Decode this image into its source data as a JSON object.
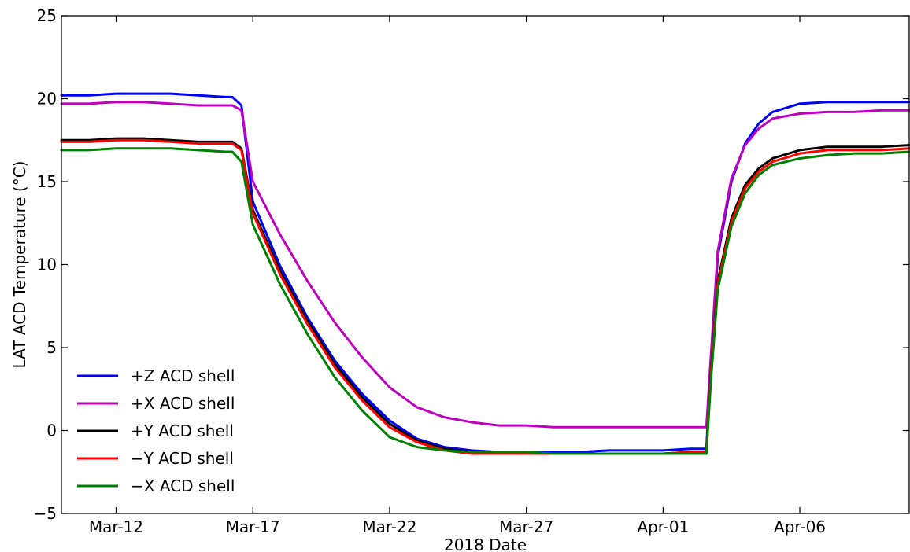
{
  "chart_data": {
    "type": "line",
    "xlabel": "2018 Date",
    "ylabel": "LAT ACD Temperature (°C)",
    "xlim": [
      "2018-03-10",
      "2018-04-10"
    ],
    "ylim": [
      -5,
      25
    ],
    "yticks": [
      -5,
      0,
      5,
      10,
      15,
      20,
      25
    ],
    "xticks": [
      {
        "date": "2018-03-12",
        "label": "Mar-12"
      },
      {
        "date": "2018-03-17",
        "label": "Mar-17"
      },
      {
        "date": "2018-03-22",
        "label": "Mar-22"
      },
      {
        "date": "2018-03-27",
        "label": "Mar-27"
      },
      {
        "date": "2018-04-01",
        "label": "Apr-01"
      },
      {
        "date": "2018-04-06",
        "label": "Apr-06"
      }
    ],
    "grid": false,
    "legend_position": "lower-left",
    "series": [
      {
        "name": "+Z ACD shell",
        "color": "#0000ff",
        "x": [
          "2018-03-10",
          "2018-03-11",
          "2018-03-12",
          "2018-03-13",
          "2018-03-14",
          "2018-03-15",
          "2018-03-16",
          "2018-03-16 06:00",
          "2018-03-16 14:00",
          "2018-03-17",
          "2018-03-18",
          "2018-03-19",
          "2018-03-20",
          "2018-03-21",
          "2018-03-22",
          "2018-03-23",
          "2018-03-24",
          "2018-03-25",
          "2018-03-26",
          "2018-03-27",
          "2018-03-28",
          "2018-03-29",
          "2018-03-30",
          "2018-03-31",
          "2018-04-01",
          "2018-04-02",
          "2018-04-02 14:00",
          "2018-04-02 18:00",
          "2018-04-03",
          "2018-04-03 12:00",
          "2018-04-04",
          "2018-04-04 12:00",
          "2018-04-05",
          "2018-04-06",
          "2018-04-07",
          "2018-04-08",
          "2018-04-09",
          "2018-04-10"
        ],
        "y": [
          20.2,
          20.2,
          20.3,
          20.3,
          20.3,
          20.2,
          20.1,
          20.1,
          19.6,
          13.8,
          9.9,
          6.8,
          4.2,
          2.2,
          0.6,
          -0.5,
          -1.0,
          -1.2,
          -1.3,
          -1.3,
          -1.3,
          -1.3,
          -1.2,
          -1.2,
          -1.2,
          -1.1,
          -1.1,
          4.0,
          10.5,
          15.0,
          17.3,
          18.5,
          19.2,
          19.7,
          19.8,
          19.8,
          19.8,
          19.8
        ]
      },
      {
        "name": "+X ACD shell",
        "color": "#c000c0",
        "x": [
          "2018-03-10",
          "2018-03-11",
          "2018-03-12",
          "2018-03-13",
          "2018-03-14",
          "2018-03-15",
          "2018-03-16",
          "2018-03-16 06:00",
          "2018-03-16 14:00",
          "2018-03-17",
          "2018-03-18",
          "2018-03-19",
          "2018-03-20",
          "2018-03-21",
          "2018-03-22",
          "2018-03-23",
          "2018-03-24",
          "2018-03-25",
          "2018-03-26",
          "2018-03-27",
          "2018-03-28",
          "2018-03-29",
          "2018-03-30",
          "2018-03-31",
          "2018-04-01",
          "2018-04-02",
          "2018-04-02 14:00",
          "2018-04-02 18:00",
          "2018-04-03",
          "2018-04-03 12:00",
          "2018-04-04",
          "2018-04-04 12:00",
          "2018-04-05",
          "2018-04-06",
          "2018-04-07",
          "2018-04-08",
          "2018-04-09",
          "2018-04-10"
        ],
        "y": [
          19.7,
          19.7,
          19.8,
          19.8,
          19.7,
          19.6,
          19.6,
          19.6,
          19.3,
          15.0,
          11.8,
          9.0,
          6.5,
          4.4,
          2.6,
          1.4,
          0.8,
          0.5,
          0.3,
          0.3,
          0.2,
          0.2,
          0.2,
          0.2,
          0.2,
          0.2,
          0.2,
          4.5,
          10.8,
          15.2,
          17.2,
          18.2,
          18.8,
          19.1,
          19.2,
          19.2,
          19.3,
          19.3
        ]
      },
      {
        "name": "+Y ACD shell",
        "color": "#000000",
        "x": [
          "2018-03-10",
          "2018-03-11",
          "2018-03-12",
          "2018-03-13",
          "2018-03-14",
          "2018-03-15",
          "2018-03-16",
          "2018-03-16 06:00",
          "2018-03-16 14:00",
          "2018-03-17",
          "2018-03-18",
          "2018-03-19",
          "2018-03-20",
          "2018-03-21",
          "2018-03-22",
          "2018-03-23",
          "2018-03-24",
          "2018-03-25",
          "2018-03-26",
          "2018-03-27",
          "2018-03-28",
          "2018-03-29",
          "2018-03-30",
          "2018-03-31",
          "2018-04-01",
          "2018-04-02",
          "2018-04-02 14:00",
          "2018-04-02 18:00",
          "2018-04-03",
          "2018-04-03 12:00",
          "2018-04-04",
          "2018-04-04 12:00",
          "2018-04-05",
          "2018-04-06",
          "2018-04-07",
          "2018-04-08",
          "2018-04-09",
          "2018-04-10"
        ],
        "y": [
          17.5,
          17.5,
          17.6,
          17.6,
          17.5,
          17.4,
          17.4,
          17.4,
          17.0,
          13.3,
          9.6,
          6.6,
          4.0,
          2.0,
          0.4,
          -0.6,
          -1.1,
          -1.3,
          -1.4,
          -1.4,
          -1.4,
          -1.4,
          -1.4,
          -1.4,
          -1.4,
          -1.3,
          -1.3,
          3.5,
          9.0,
          12.8,
          14.8,
          15.8,
          16.4,
          16.9,
          17.1,
          17.1,
          17.1,
          17.2
        ]
      },
      {
        "name": "−Y ACD shell",
        "color": "#ff0000",
        "x": [
          "2018-03-10",
          "2018-03-11",
          "2018-03-12",
          "2018-03-13",
          "2018-03-14",
          "2018-03-15",
          "2018-03-16",
          "2018-03-16 06:00",
          "2018-03-16 14:00",
          "2018-03-17",
          "2018-03-18",
          "2018-03-19",
          "2018-03-20",
          "2018-03-21",
          "2018-03-22",
          "2018-03-23",
          "2018-03-24",
          "2018-03-25",
          "2018-03-26",
          "2018-03-27",
          "2018-03-28",
          "2018-03-29",
          "2018-03-30",
          "2018-03-31",
          "2018-04-01",
          "2018-04-02",
          "2018-04-02 14:00",
          "2018-04-02 18:00",
          "2018-04-03",
          "2018-04-03 12:00",
          "2018-04-04",
          "2018-04-04 12:00",
          "2018-04-05",
          "2018-04-06",
          "2018-04-07",
          "2018-04-08",
          "2018-04-09",
          "2018-04-10"
        ],
        "y": [
          17.4,
          17.4,
          17.5,
          17.5,
          17.4,
          17.3,
          17.3,
          17.3,
          16.9,
          13.1,
          9.4,
          6.4,
          3.8,
          1.8,
          0.2,
          -0.7,
          -1.2,
          -1.4,
          -1.4,
          -1.4,
          -1.4,
          -1.4,
          -1.4,
          -1.4,
          -1.4,
          -1.3,
          -1.3,
          3.3,
          8.8,
          12.6,
          14.6,
          15.6,
          16.2,
          16.7,
          16.9,
          16.9,
          16.9,
          17.0
        ]
      },
      {
        "name": "−X ACD shell",
        "color": "#008000",
        "x": [
          "2018-03-10",
          "2018-03-11",
          "2018-03-12",
          "2018-03-13",
          "2018-03-14",
          "2018-03-15",
          "2018-03-16",
          "2018-03-16 06:00",
          "2018-03-16 14:00",
          "2018-03-17",
          "2018-03-18",
          "2018-03-19",
          "2018-03-20",
          "2018-03-21",
          "2018-03-22",
          "2018-03-23",
          "2018-03-24",
          "2018-03-25",
          "2018-03-26",
          "2018-03-27",
          "2018-03-28",
          "2018-03-29",
          "2018-03-30",
          "2018-03-31",
          "2018-04-01",
          "2018-04-02",
          "2018-04-02 14:00",
          "2018-04-02 18:00",
          "2018-04-03",
          "2018-04-03 12:00",
          "2018-04-04",
          "2018-04-04 12:00",
          "2018-04-05",
          "2018-04-06",
          "2018-04-07",
          "2018-04-08",
          "2018-04-09",
          "2018-04-10"
        ],
        "y": [
          16.9,
          16.9,
          17.0,
          17.0,
          17.0,
          16.9,
          16.8,
          16.8,
          16.2,
          12.4,
          8.8,
          5.8,
          3.2,
          1.2,
          -0.4,
          -1.0,
          -1.2,
          -1.3,
          -1.3,
          -1.3,
          -1.4,
          -1.4,
          -1.4,
          -1.4,
          -1.4,
          -1.4,
          -1.4,
          3.0,
          8.5,
          12.3,
          14.3,
          15.4,
          16.0,
          16.4,
          16.6,
          16.7,
          16.7,
          16.8
        ]
      }
    ]
  }
}
